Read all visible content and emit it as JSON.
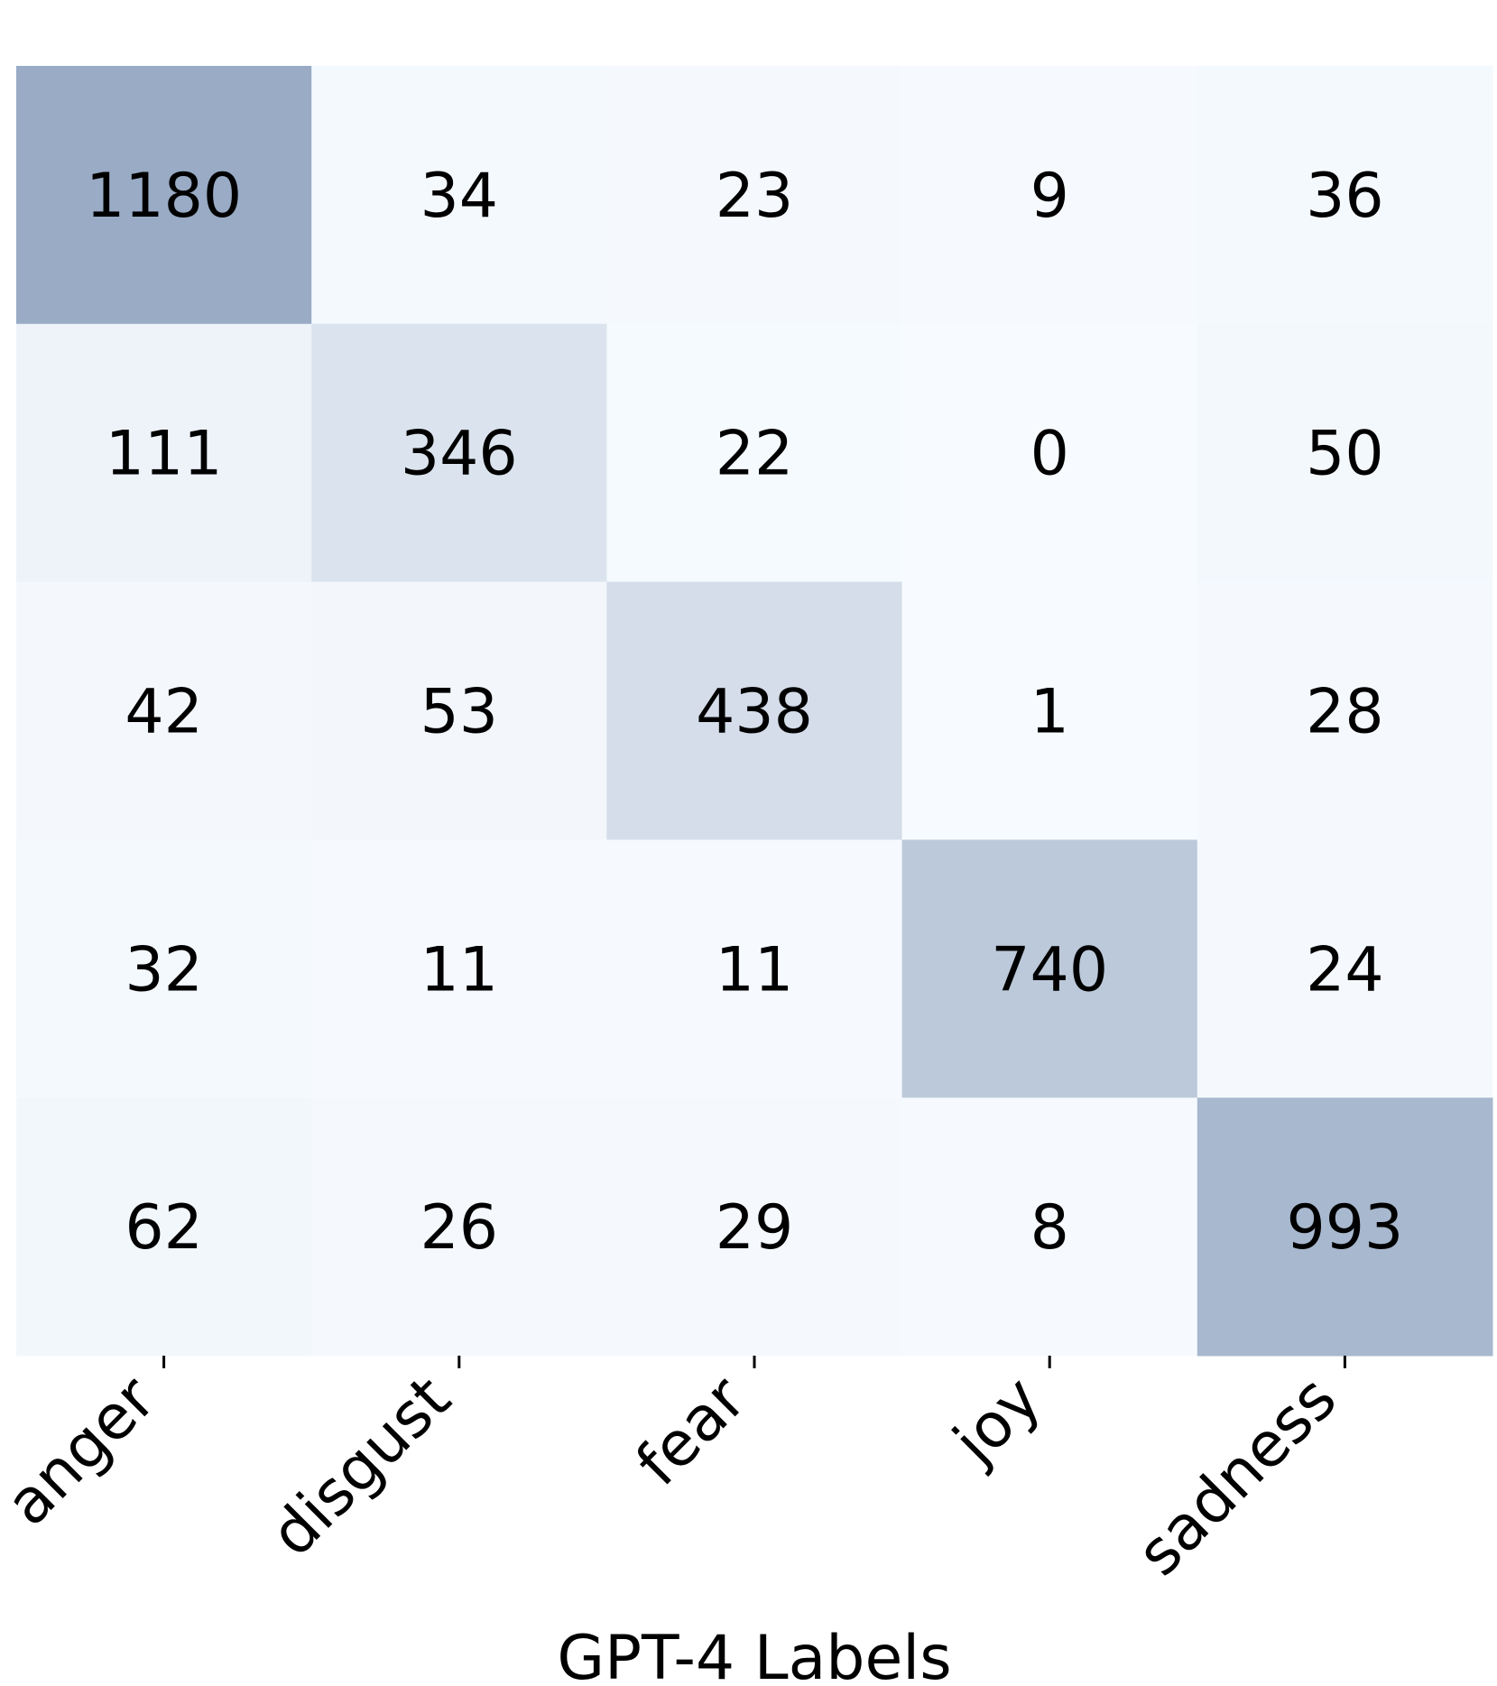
{
  "chart_data": {
    "type": "heatmap",
    "xlabel": "GPT-4 Labels",
    "x_categories": [
      "anger",
      "disgust",
      "fear",
      "joy",
      "sadness"
    ],
    "matrix": [
      [
        1180,
        34,
        23,
        9,
        36
      ],
      [
        111,
        346,
        22,
        0,
        50
      ],
      [
        42,
        53,
        438,
        1,
        28
      ],
      [
        32,
        11,
        11,
        740,
        24
      ],
      [
        62,
        26,
        29,
        8,
        993
      ]
    ],
    "colormap": "Blues",
    "colors": {
      "low": "#f7fbff",
      "high": "#08306b"
    },
    "value_range": [
      0,
      3000
    ]
  }
}
